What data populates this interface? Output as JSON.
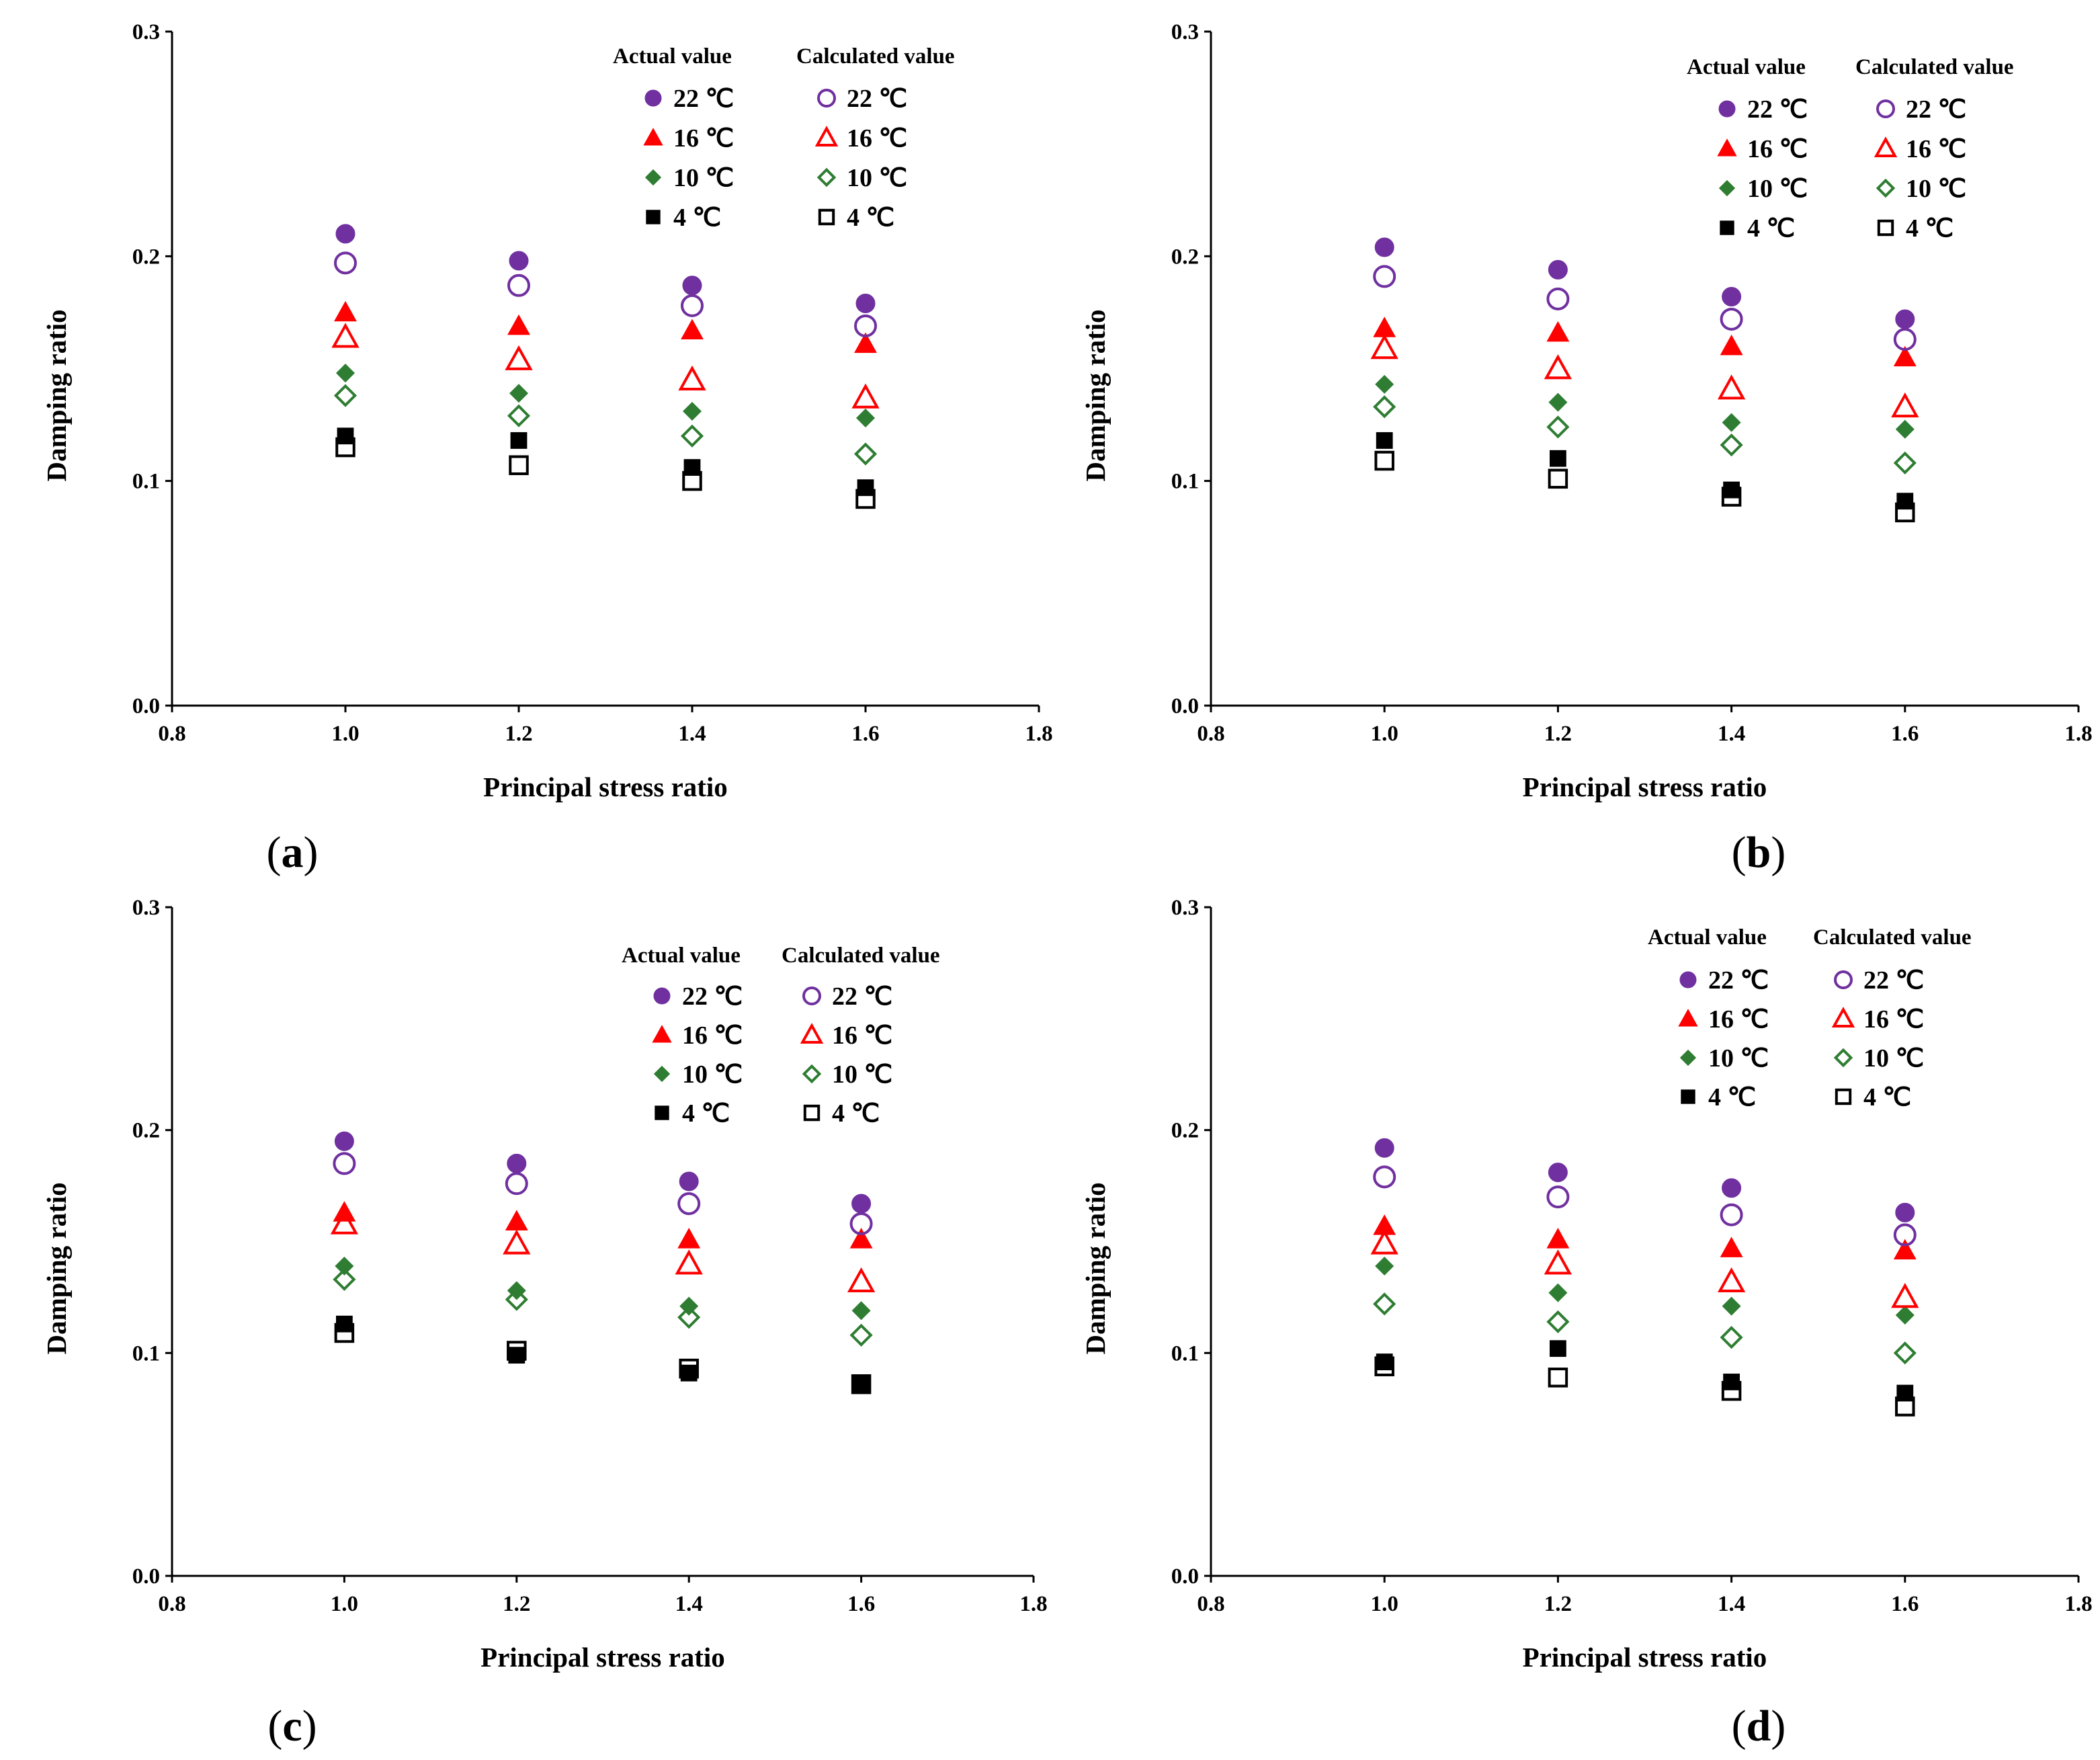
{
  "series_styles": {
    "22": {
      "color": "#7030A0",
      "filled_marker": "circle",
      "open_marker": "circle"
    },
    "16": {
      "color": "#FF0000",
      "filled_marker": "triangle",
      "open_marker": "triangle"
    },
    "10": {
      "color": "#2E7D32",
      "filled_marker": "diamond",
      "open_marker": "diamond"
    },
    "4": {
      "color": "#000000",
      "filled_marker": "square",
      "open_marker": "square"
    }
  },
  "chart_data": [
    {
      "panel": "a",
      "panel_label_letter": "a",
      "type": "scatter",
      "xlabel": "Principal stress ratio",
      "ylabel": "Damping ratio",
      "xlim": [
        0.8,
        1.8
      ],
      "ylim": [
        0.0,
        0.3
      ],
      "x_ticks": [
        "0.8",
        "1.0",
        "1.2",
        "1.4",
        "1.6",
        "1.8"
      ],
      "y_ticks": [
        "0.0",
        "0.1",
        "0.2",
        "0.3"
      ],
      "grid": false,
      "legend": {
        "placement": "top-right",
        "actual_header": "Actual value",
        "calculated_header": "Calculated value",
        "labels": [
          "22 ℃",
          "16 ℃",
          "10 ℃",
          "4 ℃"
        ]
      },
      "x": [
        1.0,
        1.2,
        1.4,
        1.6
      ],
      "series": [
        {
          "name": "22 ℃",
          "group": "Actual value",
          "temp": "22",
          "values": [
            0.21,
            0.198,
            0.187,
            0.179
          ]
        },
        {
          "name": "16 ℃",
          "group": "Actual value",
          "temp": "16",
          "values": [
            0.175,
            0.169,
            0.167,
            0.161
          ]
        },
        {
          "name": "10 ℃",
          "group": "Actual value",
          "temp": "10",
          "values": [
            0.148,
            0.139,
            0.131,
            0.128
          ]
        },
        {
          "name": "4 ℃",
          "group": "Actual value",
          "temp": "4",
          "values": [
            0.12,
            0.118,
            0.106,
            0.097
          ]
        },
        {
          "name": "22 ℃",
          "group": "Calculated value",
          "temp": "22",
          "values": [
            0.197,
            0.187,
            0.178,
            0.169
          ]
        },
        {
          "name": "16 ℃",
          "group": "Calculated value",
          "temp": "16",
          "values": [
            0.164,
            0.154,
            0.145,
            0.137
          ]
        },
        {
          "name": "10 ℃",
          "group": "Calculated value",
          "temp": "10",
          "values": [
            0.138,
            0.129,
            0.12,
            0.112
          ]
        },
        {
          "name": "4 ℃",
          "group": "Calculated value",
          "temp": "4",
          "values": [
            0.115,
            0.107,
            0.1,
            0.092
          ]
        }
      ]
    },
    {
      "panel": "b",
      "panel_label_letter": "b",
      "type": "scatter",
      "xlabel": "Principal stress ratio",
      "ylabel": "Damping ratio",
      "xlim": [
        0.8,
        1.8
      ],
      "ylim": [
        0.0,
        0.3
      ],
      "x_ticks": [
        "0.8",
        "1.0",
        "1.2",
        "1.4",
        "1.6",
        "1.8"
      ],
      "y_ticks": [
        "0.0",
        "0.1",
        "0.2",
        "0.3"
      ],
      "grid": false,
      "legend": {
        "placement": "top-right",
        "actual_header": "Actual value",
        "calculated_header": "Calculated value",
        "labels": [
          "22 ℃",
          "16 ℃",
          "10 ℃",
          "4 ℃"
        ]
      },
      "x": [
        1.0,
        1.2,
        1.4,
        1.6
      ],
      "series": [
        {
          "name": "22 ℃",
          "group": "Actual value",
          "temp": "22",
          "values": [
            0.204,
            0.194,
            0.182,
            0.172
          ]
        },
        {
          "name": "16 ℃",
          "group": "Actual value",
          "temp": "16",
          "values": [
            0.168,
            0.166,
            0.16,
            0.155
          ]
        },
        {
          "name": "10 ℃",
          "group": "Actual value",
          "temp": "10",
          "values": [
            0.143,
            0.135,
            0.126,
            0.123
          ]
        },
        {
          "name": "4 ℃",
          "group": "Actual value",
          "temp": "4",
          "values": [
            0.118,
            0.11,
            0.096,
            0.091
          ]
        },
        {
          "name": "22 ℃",
          "group": "Calculated value",
          "temp": "22",
          "values": [
            0.191,
            0.181,
            0.172,
            0.163
          ]
        },
        {
          "name": "16 ℃",
          "group": "Calculated value",
          "temp": "16",
          "values": [
            0.159,
            0.15,
            0.141,
            0.133
          ]
        },
        {
          "name": "10 ℃",
          "group": "Calculated value",
          "temp": "10",
          "values": [
            0.133,
            0.124,
            0.116,
            0.108
          ]
        },
        {
          "name": "4 ℃",
          "group": "Calculated value",
          "temp": "4",
          "values": [
            0.109,
            0.101,
            0.093,
            0.086
          ]
        }
      ]
    },
    {
      "panel": "c",
      "panel_label_letter": "c",
      "type": "scatter",
      "xlabel": "Principal stress ratio",
      "ylabel": "Damping ratio",
      "xlim": [
        0.8,
        1.8
      ],
      "ylim": [
        0.0,
        0.3
      ],
      "x_ticks": [
        "0.8",
        "1.0",
        "1.2",
        "1.4",
        "1.6",
        "1.8"
      ],
      "y_ticks": [
        "0.0",
        "0.1",
        "0.2",
        "0.3"
      ],
      "grid": false,
      "legend": {
        "placement": "top-right",
        "actual_header": "Actual value",
        "calculated_header": "Calculated value",
        "labels": [
          "22 ℃",
          "16 ℃",
          "10 ℃",
          "4 ℃"
        ]
      },
      "x": [
        1.0,
        1.2,
        1.4,
        1.6
      ],
      "series": [
        {
          "name": "22 ℃",
          "group": "Actual value",
          "temp": "22",
          "values": [
            0.195,
            0.185,
            0.177,
            0.167
          ]
        },
        {
          "name": "16 ℃",
          "group": "Actual value",
          "temp": "16",
          "values": [
            0.163,
            0.159,
            0.151,
            0.151
          ]
        },
        {
          "name": "10 ℃",
          "group": "Actual value",
          "temp": "10",
          "values": [
            0.139,
            0.128,
            0.121,
            0.119
          ]
        },
        {
          "name": "4 ℃",
          "group": "Actual value",
          "temp": "4",
          "values": [
            0.113,
            0.099,
            0.091,
            0.086
          ]
        },
        {
          "name": "22 ℃",
          "group": "Calculated value",
          "temp": "22",
          "values": [
            0.185,
            0.176,
            0.167,
            0.158
          ]
        },
        {
          "name": "16 ℃",
          "group": "Calculated value",
          "temp": "16",
          "values": [
            0.158,
            0.149,
            0.14,
            0.132
          ]
        },
        {
          "name": "10 ℃",
          "group": "Calculated value",
          "temp": "10",
          "values": [
            0.133,
            0.124,
            0.116,
            0.108
          ]
        },
        {
          "name": "4 ℃",
          "group": "Calculated value",
          "temp": "4",
          "values": [
            0.109,
            0.101,
            0.093,
            0.086
          ]
        }
      ]
    },
    {
      "panel": "d",
      "panel_label_letter": "d",
      "type": "scatter",
      "xlabel": "Principal stress ratio",
      "ylabel": "Damping ratio",
      "xlim": [
        0.8,
        1.8
      ],
      "ylim": [
        0.0,
        0.3
      ],
      "x_ticks": [
        "0.8",
        "1.0",
        "1.2",
        "1.4",
        "1.6",
        "1.8"
      ],
      "y_ticks": [
        "0.0",
        "0.1",
        "0.2",
        "0.3"
      ],
      "grid": false,
      "legend": {
        "placement": "top-right",
        "actual_header": "Actual value",
        "calculated_header": "Calculated value",
        "labels": [
          "22 ℃",
          "16 ℃",
          "10 ℃",
          "4 ℃"
        ]
      },
      "x": [
        1.0,
        1.2,
        1.4,
        1.6
      ],
      "series": [
        {
          "name": "22 ℃",
          "group": "Actual value",
          "temp": "22",
          "values": [
            0.192,
            0.181,
            0.174,
            0.163
          ]
        },
        {
          "name": "16 ℃",
          "group": "Actual value",
          "temp": "16",
          "values": [
            0.157,
            0.151,
            0.147,
            0.146
          ]
        },
        {
          "name": "10 ℃",
          "group": "Actual value",
          "temp": "10",
          "values": [
            0.139,
            0.127,
            0.121,
            0.117
          ]
        },
        {
          "name": "4 ℃",
          "group": "Actual value",
          "temp": "4",
          "values": [
            0.096,
            0.102,
            0.087,
            0.082
          ]
        },
        {
          "name": "22 ℃",
          "group": "Calculated value",
          "temp": "22",
          "values": [
            0.179,
            0.17,
            0.162,
            0.153
          ]
        },
        {
          "name": "16 ℃",
          "group": "Calculated value",
          "temp": "16",
          "values": [
            0.149,
            0.14,
            0.132,
            0.125
          ]
        },
        {
          "name": "10 ℃",
          "group": "Calculated value",
          "temp": "10",
          "values": [
            0.122,
            0.114,
            0.107,
            0.1
          ]
        },
        {
          "name": "4 ℃",
          "group": "Calculated value",
          "temp": "4",
          "values": [
            0.094,
            0.089,
            0.083,
            0.076
          ]
        }
      ]
    }
  ]
}
